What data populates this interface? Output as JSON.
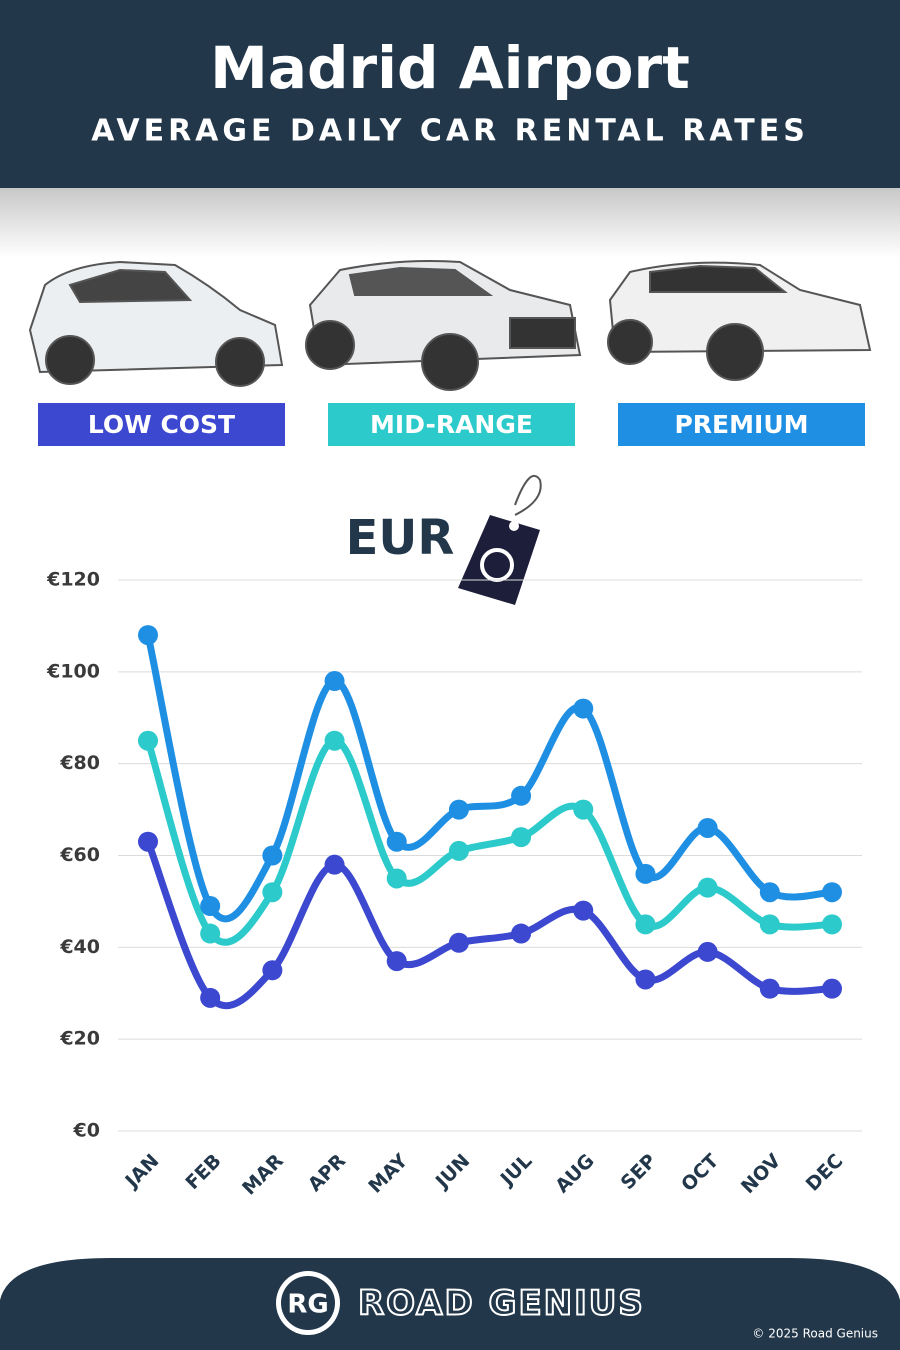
{
  "chart_data": {
    "type": "line",
    "title": "Madrid Airport",
    "subtitle": "AVERAGE DAILY CAR RENTAL RATES",
    "annotation": "EUR",
    "categories": [
      "JAN",
      "FEB",
      "MAR",
      "APR",
      "MAY",
      "JUN",
      "JUL",
      "AUG",
      "SEP",
      "OCT",
      "NOV",
      "DEC"
    ],
    "series": [
      {
        "name": "LOW COST",
        "color": "#3b48cf",
        "values": [
          63,
          29,
          35,
          58,
          37,
          41,
          43,
          48,
          33,
          39,
          31,
          31
        ]
      },
      {
        "name": "MID-RANGE",
        "color": "#2ccaca",
        "values": [
          85,
          43,
          52,
          85,
          55,
          61,
          64,
          70,
          45,
          53,
          45,
          45
        ]
      },
      {
        "name": "PREMIUM",
        "color": "#1f8fe3",
        "values": [
          108,
          49,
          60,
          98,
          63,
          70,
          73,
          92,
          56,
          66,
          52,
          52
        ]
      }
    ],
    "ylim": [
      0,
      120
    ],
    "yticks": [
      {
        "value": 0,
        "label": "€0"
      },
      {
        "value": 20,
        "label": "€20"
      },
      {
        "value": 40,
        "label": "€40"
      },
      {
        "value": 60,
        "label": "€60"
      },
      {
        "value": 80,
        "label": "€80"
      },
      {
        "value": 100,
        "label": "€100"
      },
      {
        "value": 120,
        "label": "€120"
      }
    ],
    "grid": true
  },
  "footer": {
    "logo": "RG",
    "brand": "ROAD GENIUS",
    "copyright": "© 2025 Road Genius"
  }
}
